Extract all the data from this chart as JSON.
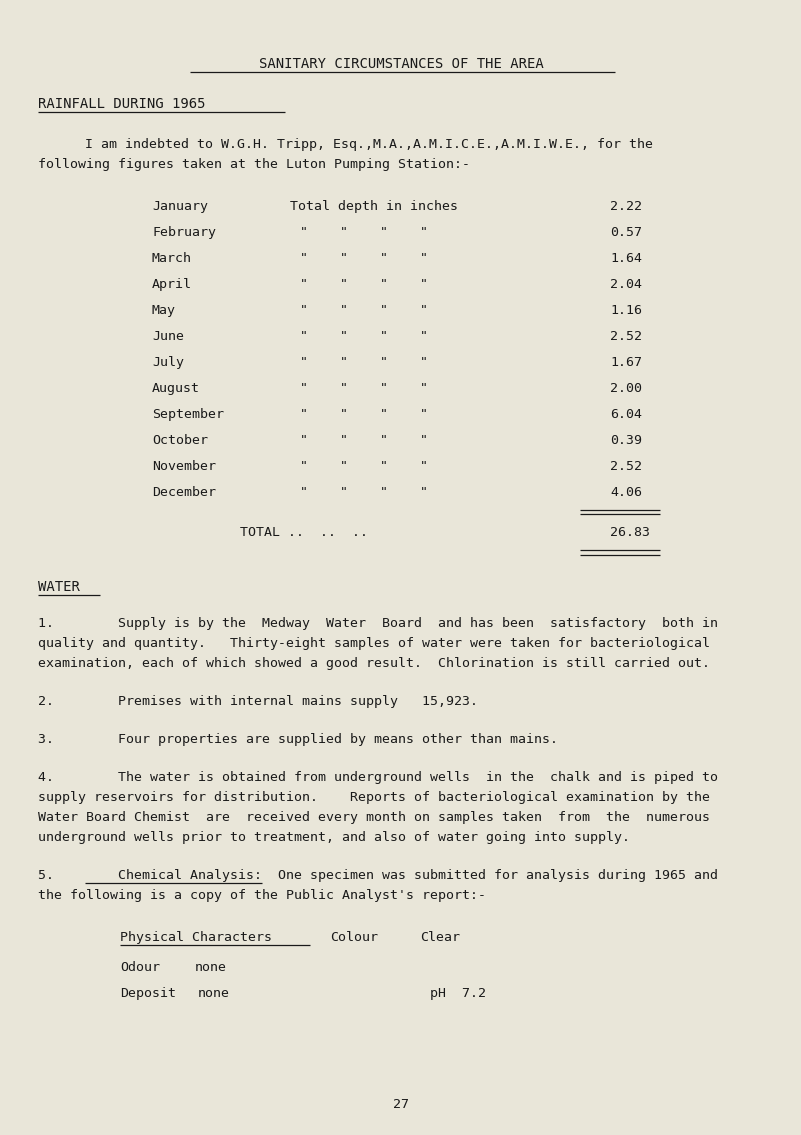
{
  "bg_color": "#e9e6d9",
  "title": "SANITARY CIRCUMSTANCES OF THE AREA",
  "section1_heading": "RAINFALL DURING 1965",
  "intro_line1": "I am indebted to W.G.H. Tripp, Esq.,M.A.,A.M.I.C.E.,A.M.I.W.E., for the",
  "intro_line2": "following figures taken at the Luton Pumping Station:-",
  "months": [
    "January",
    "February",
    "March",
    "April",
    "May",
    "June",
    "July",
    "August",
    "September",
    "October",
    "November",
    "December"
  ],
  "col_header": "Total depth in inches",
  "values": [
    "2.22",
    "0.57",
    "1.64",
    "2.04",
    "1.16",
    "2.52",
    "1.67",
    "2.00",
    "6.04",
    "0.39",
    "2.52",
    "4.06"
  ],
  "total_label": "TOTAL ..  ..  ..",
  "total_value": "26.83",
  "section2_heading": "WATER",
  "para1_l1": "1.        Supply is by the  Medway  Water  Board  and has been  satisfactory  both in",
  "para1_l2": "quality and quantity.   Thirty-eight samples of water were taken for bacteriological",
  "para1_l3": "examination, each of which showed a good result.  Chlorination is still carried out.",
  "para2": "2.        Premises with internal mains supply   15,923.",
  "para3": "3.        Four properties are supplied by means other than mains.",
  "para4_l1": "4.        The water is obtained from underground wells  in the  chalk and is piped to",
  "para4_l2": "supply reservoirs for distribution.    Reports of bacteriological examination by the",
  "para4_l3": "Water Board Chemist  are  received every month on samples taken  from  the  numerous",
  "para4_l4": "underground wells prior to treatment, and also of water going into supply.",
  "para5_l1": "5.        Chemical Analysis:  One specimen was submitted for analysis during 1965 and",
  "para5_l2": "the following is a copy of the Public Analyst's report:-",
  "phys_char": "Physical Characters",
  "phys_colour_label": "Colour",
  "phys_colour_val": "Clear",
  "phys_odour_label": "Odour",
  "phys_odour_val": "none",
  "phys_deposit_label": "Deposit",
  "phys_deposit_val": "none",
  "phys_ph": "pH  7.2",
  "page_num": "27",
  "text_color": "#1a1a1a",
  "font_size": 9.5
}
